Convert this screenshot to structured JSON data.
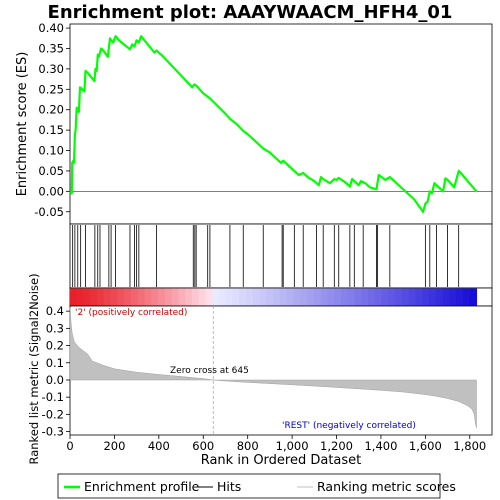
{
  "chart_data": {
    "type": "line",
    "title": "Enrichment plot: AAAYWAACM_HFH4_01",
    "top_panel": {
      "ylabel": "Enrichment score (ES)",
      "ylim": [
        -0.08,
        0.41
      ],
      "yticks": [
        -0.05,
        0.0,
        0.05,
        0.1,
        0.15,
        0.2,
        0.25,
        0.3,
        0.35,
        0.4
      ],
      "ytick_labels": [
        "-0.05",
        "0.00",
        "0.05",
        "0.10",
        "0.15",
        "0.20",
        "0.25",
        "0.30",
        "0.35",
        "0.40"
      ],
      "line_color": "#00ff00",
      "series": [
        {
          "name": "Enrichment profile",
          "x": [
            0,
            8,
            10,
            15,
            18,
            22,
            25,
            30,
            40,
            45,
            55,
            65,
            70,
            80,
            110,
            115,
            120,
            125,
            130,
            140,
            150,
            170,
            180,
            185,
            195,
            205,
            210,
            220,
            270,
            280,
            290,
            300,
            310,
            320,
            380,
            390,
            400,
            420,
            550,
            560,
            570,
            600,
            620,
            630,
            700,
            720,
            750,
            780,
            800,
            850,
            870,
            900,
            920,
            950,
            960,
            1000,
            1010,
            1030,
            1050,
            1070,
            1100,
            1120,
            1130,
            1140,
            1170,
            1190,
            1200,
            1210,
            1240,
            1260,
            1270,
            1300,
            1310,
            1330,
            1350,
            1380,
            1390,
            1420,
            1440,
            1460,
            1500,
            1550,
            1590,
            1600,
            1610,
            1620,
            1630,
            1640,
            1660,
            1680,
            1690,
            1700,
            1730,
            1750,
            1760,
            1790,
            1830
          ],
          "y": [
            0.0,
            -0.005,
            0.07,
            0.075,
            0.07,
            0.14,
            0.15,
            0.205,
            0.195,
            0.255,
            0.25,
            0.245,
            0.295,
            0.29,
            0.27,
            0.3,
            0.295,
            0.335,
            0.33,
            0.35,
            0.345,
            0.33,
            0.375,
            0.37,
            0.365,
            0.38,
            0.378,
            0.37,
            0.348,
            0.36,
            0.355,
            0.37,
            0.365,
            0.38,
            0.34,
            0.345,
            0.34,
            0.33,
            0.255,
            0.262,
            0.258,
            0.24,
            0.232,
            0.228,
            0.19,
            0.178,
            0.165,
            0.148,
            0.14,
            0.115,
            0.105,
            0.095,
            0.085,
            0.07,
            0.075,
            0.055,
            0.05,
            0.04,
            0.045,
            0.035,
            0.025,
            0.015,
            0.035,
            0.03,
            0.02,
            0.03,
            0.028,
            0.033,
            0.022,
            0.012,
            0.03,
            0.015,
            0.025,
            0.02,
            0.01,
            0.005,
            0.04,
            0.028,
            0.035,
            0.025,
            0.005,
            -0.02,
            -0.05,
            -0.03,
            -0.025,
            0.0,
            -0.005,
            0.02,
            0.01,
            0.0,
            0.032,
            0.028,
            0.01,
            0.05,
            0.045,
            0.025,
            0.0
          ]
        }
      ]
    },
    "hits_panel": {
      "hit_positions": [
        12,
        22,
        35,
        48,
        70,
        112,
        125,
        135,
        175,
        185,
        205,
        270,
        290,
        300,
        310,
        390,
        555,
        562,
        568,
        620,
        630,
        720,
        780,
        870,
        955,
        960,
        1010,
        1050,
        1110,
        1140,
        1190,
        1210,
        1260,
        1280,
        1320,
        1380,
        1385,
        1440,
        1600,
        1620,
        1650,
        1700,
        1750
      ]
    },
    "bottom_panel": {
      "ylabel": "Ranked list metric (Signal2Noise)",
      "xlabel": "Rank in Ordered Dataset",
      "ylim": [
        -0.32,
        0.43
      ],
      "yticks": [
        -0.3,
        -0.2,
        -0.1,
        0.0,
        0.1,
        0.2,
        0.3,
        0.4
      ],
      "ytick_labels": [
        "-0.3",
        "-0.2",
        "-0.1",
        "0.0",
        "0.1",
        "0.2",
        "0.3",
        "0.4"
      ],
      "fill_color": "#c0c0c0",
      "metric_x": [
        0,
        5,
        10,
        20,
        40,
        60,
        80,
        100,
        150,
        200,
        300,
        400,
        500,
        600,
        645,
        700,
        800,
        1000,
        1200,
        1400,
        1500,
        1600,
        1650,
        1700,
        1750,
        1790,
        1810,
        1820,
        1826,
        1830
      ],
      "metric_y": [
        0.42,
        0.33,
        0.27,
        0.22,
        0.19,
        0.17,
        0.15,
        0.11,
        0.085,
        0.065,
        0.045,
        0.032,
        0.02,
        0.008,
        0.0,
        -0.006,
        -0.014,
        -0.028,
        -0.043,
        -0.06,
        -0.07,
        -0.085,
        -0.095,
        -0.108,
        -0.125,
        -0.15,
        -0.17,
        -0.2,
        -0.26,
        -0.28
      ],
      "zero_cross_label": "Zero cross at 645",
      "zero_cross_x": 645,
      "positive_label": "'2' (positively correlated)",
      "negative_label": "'REST' (negatively correlated)",
      "positive_color": "#cc0000",
      "negative_color": "#0000cc"
    },
    "xlim": [
      0,
      1900
    ],
    "xticks": [
      0,
      200,
      400,
      600,
      800,
      1000,
      1200,
      1400,
      1600,
      1800
    ],
    "xtick_labels": [
      "0",
      "200",
      "400",
      "600",
      "800",
      "1,000",
      "1,200",
      "1,400",
      "1,600",
      "1,800"
    ],
    "n_genes": 1830,
    "legend": {
      "placement": "bottom",
      "items": [
        {
          "label": "Enrichment profile",
          "color": "#00ff00",
          "kind": "line-thick"
        },
        {
          "label": "Hits",
          "color": "#000000",
          "kind": "line-thin"
        },
        {
          "label": "Ranking metric scores",
          "color": "#c0c0c0",
          "kind": "line-thin"
        }
      ]
    }
  }
}
